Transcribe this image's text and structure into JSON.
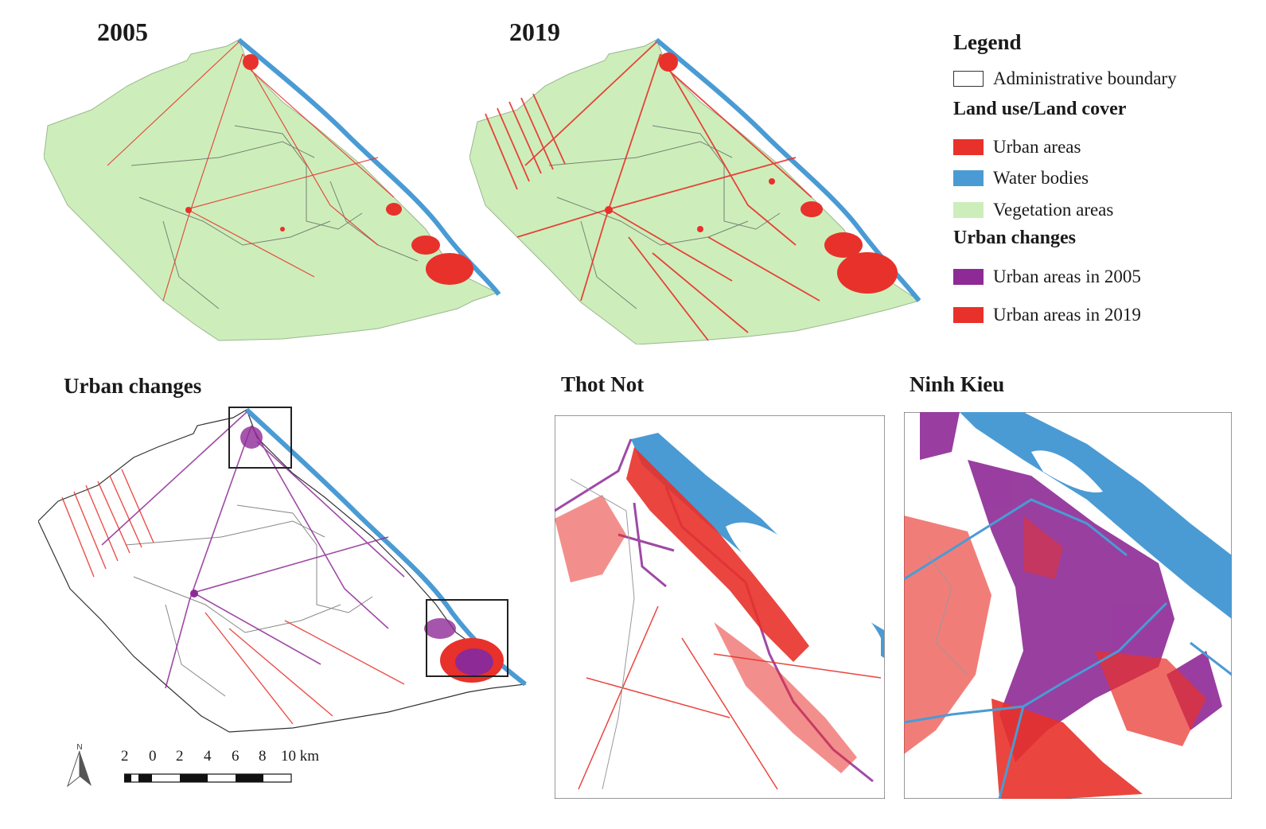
{
  "panels": {
    "map_2005": {
      "title": "2005"
    },
    "map_2019": {
      "title": "2019"
    },
    "urban_changes": {
      "title": "Urban changes"
    },
    "thot_not": {
      "title": "Thot Not"
    },
    "ninh_kieu": {
      "title": "Ninh Kieu"
    }
  },
  "legend": {
    "title": "Legend",
    "boundary": {
      "label": "Administrative boundary",
      "color": "#ffffff"
    },
    "lulc_heading": "Land use/Land cover",
    "lulc": [
      {
        "label": "Urban areas",
        "color": "#e8312a",
        "icon": "urban-swatch"
      },
      {
        "label": "Water bodies",
        "color": "#4a9bd4",
        "icon": "water-swatch"
      },
      {
        "label": "Vegetation areas",
        "color": "#cdeebb",
        "icon": "vegetation-swatch"
      }
    ],
    "changes_heading": "Urban changes",
    "changes": [
      {
        "label": "Urban areas in 2005",
        "color": "#8e2a96",
        "icon": "urban-2005-swatch"
      },
      {
        "label": "Urban areas in 2019",
        "color": "#e8312a",
        "icon": "urban-2019-swatch"
      }
    ]
  },
  "scale_bar": {
    "labels": [
      "2",
      "0",
      "2",
      "4",
      "6",
      "8",
      "10 km"
    ]
  },
  "north_arrow": {
    "label": "N"
  }
}
